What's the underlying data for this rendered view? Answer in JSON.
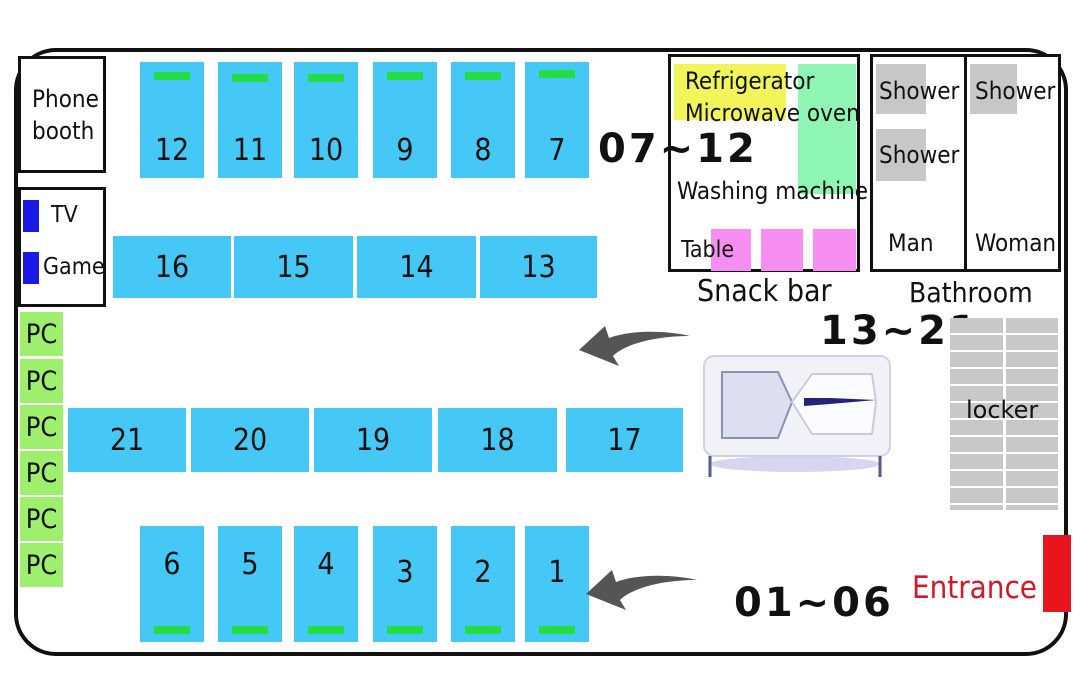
{
  "rooms": {
    "phone_booth": "Phone booth",
    "tv": "TV",
    "game": "Game",
    "snack_bar": "Snack bar",
    "refrigerator": "Refrigerator",
    "microwave": "Microwave oven",
    "washing_machine": "Washing machine",
    "table": "Table",
    "bathroom": "Bathroom",
    "shower": "Shower",
    "man": "Man",
    "woman": "Woman",
    "locker": "locker",
    "entrance": "Entrance",
    "pc": "PC"
  },
  "ranges": {
    "top": "07~12",
    "middle": "13~21",
    "bottom": "01~06"
  },
  "pods": {
    "top_row": [
      "12",
      "11",
      "10",
      "9",
      "8",
      "7"
    ],
    "row_2": [
      "16",
      "15",
      "14",
      "13"
    ],
    "row_3": [
      "21",
      "20",
      "19",
      "18",
      "17"
    ],
    "bottom_row": [
      "6",
      "5",
      "4",
      "3",
      "2",
      "1"
    ]
  },
  "colors": {
    "pod": "#45c8f5",
    "pod_indicator": "#22dd44",
    "pc": "#9fef6f",
    "refrigerator": "#f2f55a",
    "washing_machine": "#8ef5b4",
    "table": "#f58ef0",
    "entrance": "#e8141e",
    "tv_game": "#1a1ae6"
  }
}
